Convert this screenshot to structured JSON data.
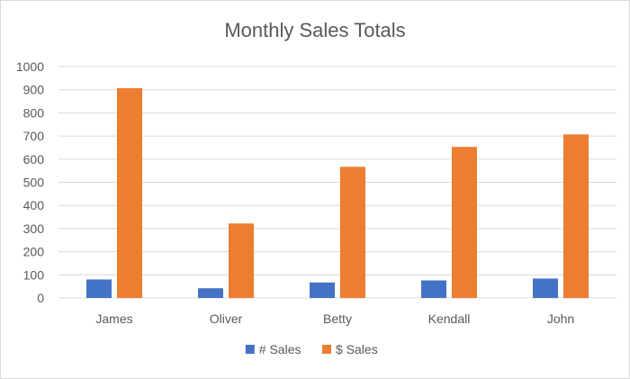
{
  "chart_data": {
    "type": "bar",
    "title": "Monthly Sales Totals",
    "xlabel": "",
    "ylabel": "",
    "categories": [
      "James",
      "Oliver",
      "Betty",
      "Kendall",
      "John"
    ],
    "series": [
      {
        "name": "# Sales",
        "values": [
          80,
          42,
          67,
          76,
          84
        ],
        "color": "#4472c4"
      },
      {
        "name": "$ Sales",
        "values": [
          907,
          322,
          567,
          653,
          707
        ],
        "color": "#ed7d31"
      }
    ],
    "ylim": [
      0,
      1000
    ],
    "yticks": [
      "0",
      "100",
      "200",
      "300",
      "400",
      "500",
      "600",
      "700",
      "800",
      "900",
      "1000"
    ],
    "grid": true,
    "legend_position": "bottom",
    "colors": {
      "gridline": "#d9d9d9",
      "axis_text": "#595959",
      "title_text": "#595959"
    }
  }
}
